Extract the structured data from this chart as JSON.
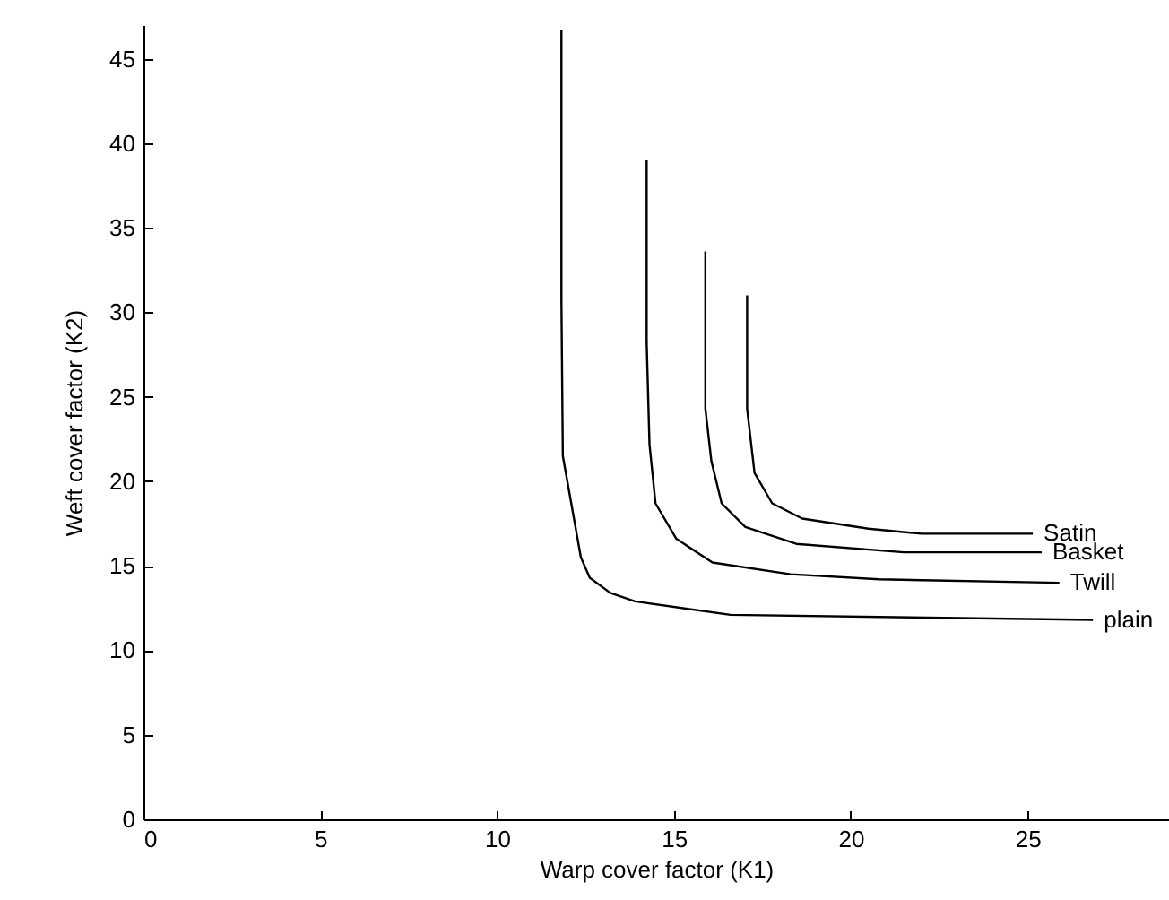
{
  "chart_data": {
    "type": "line",
    "xlabel": "Warp cover factor (K1)",
    "ylabel": "Weft cover factor (K2)",
    "xlim": [
      0,
      29
    ],
    "ylim": [
      0,
      47
    ],
    "xticks": [
      0,
      5,
      10,
      15,
      20,
      25
    ],
    "yticks": [
      0,
      5,
      10,
      15,
      20,
      25,
      30,
      35,
      40,
      45
    ],
    "grid": false,
    "marker": "none",
    "line_style": "solid",
    "series": [
      {
        "name": "Satin",
        "color": "#000000",
        "x": [
          17.07,
          17.07,
          17.28,
          17.78,
          18.63,
          20.5,
          22.0,
          25.15
        ],
        "values": [
          31.0,
          24.3,
          20.5,
          18.7,
          17.8,
          17.2,
          16.9,
          16.9
        ]
      },
      {
        "name": "Basket",
        "color": "#000000",
        "x": [
          15.89,
          15.89,
          16.06,
          16.35,
          17.02,
          18.46,
          21.5,
          25.4
        ],
        "values": [
          33.6,
          24.3,
          21.2,
          18.7,
          17.3,
          16.3,
          15.8,
          15.8
        ]
      },
      {
        "name": "Twill",
        "color": "#000000",
        "x": [
          14.23,
          14.23,
          14.31,
          14.48,
          15.07,
          16.09,
          18.3,
          20.8,
          25.9
        ],
        "values": [
          39.0,
          28.2,
          22.2,
          18.7,
          16.6,
          15.2,
          14.5,
          14.2,
          14.0
        ]
      },
      {
        "name": "plain",
        "color": "#000000",
        "x": [
          11.82,
          11.82,
          11.86,
          12.37,
          12.62,
          13.2,
          13.9,
          16.6,
          26.85
        ],
        "values": [
          46.7,
          30.7,
          21.5,
          15.5,
          14.3,
          13.4,
          12.9,
          12.1,
          11.8
        ]
      }
    ]
  }
}
